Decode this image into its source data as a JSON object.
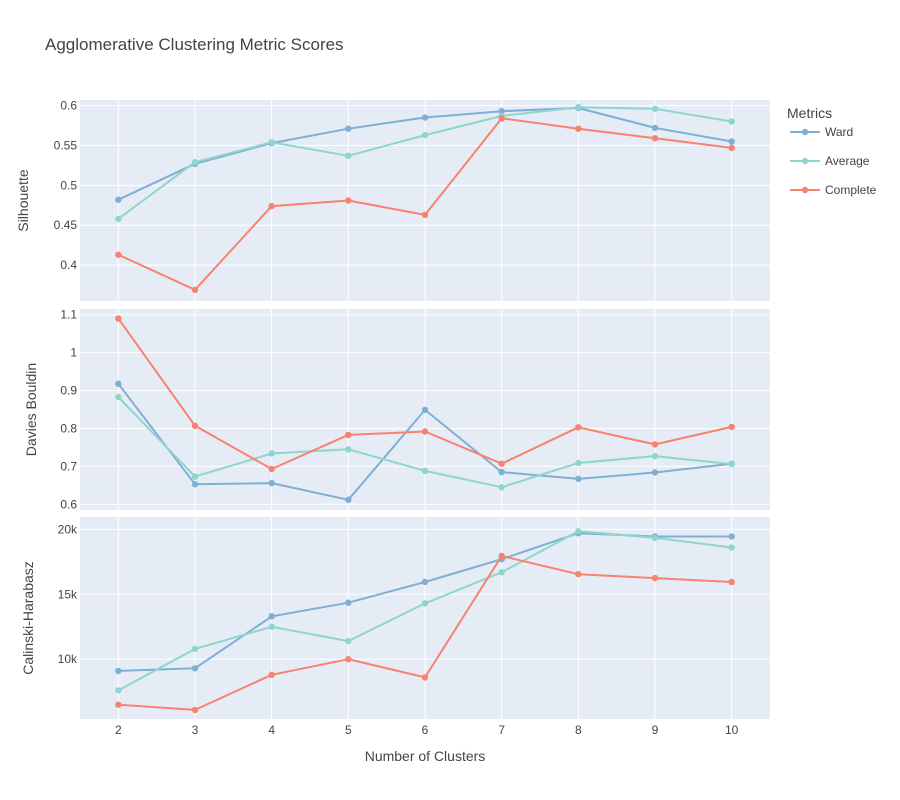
{
  "chart_data": {
    "type": "line",
    "title": "Agglomerative Clustering Metric Scores",
    "xlabel": "Number of Clusters",
    "x": [
      2,
      3,
      4,
      5,
      6,
      7,
      8,
      9,
      10
    ],
    "legend": {
      "title": "Metrics",
      "placement": "right",
      "entries": [
        "Ward",
        "Average",
        "Complete"
      ]
    },
    "colors": {
      "Ward": "#7fafd4",
      "Average": "#8ed6cb",
      "Complete": "#f7826f"
    },
    "subplots": [
      {
        "ylabel": "Silhouette",
        "ylim": [
          0.355,
          0.607
        ],
        "yticks": [
          0.4,
          0.45,
          0.5,
          0.55,
          0.6
        ],
        "ytick_labels": [
          "0.4",
          "0.45",
          "0.5",
          "0.55",
          "0.6"
        ],
        "series": [
          {
            "name": "Ward",
            "values": [
              0.482,
              0.527,
              0.553,
              0.571,
              0.585,
              0.593,
              0.597,
              0.572,
              0.555
            ]
          },
          {
            "name": "Average",
            "values": [
              0.458,
              0.529,
              0.554,
              0.537,
              0.563,
              0.587,
              0.598,
              0.596,
              0.58
            ]
          },
          {
            "name": "Complete",
            "values": [
              0.413,
              0.369,
              0.474,
              0.481,
              0.463,
              0.584,
              0.571,
              0.559,
              0.547
            ]
          }
        ]
      },
      {
        "ylabel": "Davies Bouldin",
        "ylim": [
          0.585,
          1.115
        ],
        "yticks": [
          0.6,
          0.7,
          0.8,
          0.9,
          1,
          1.1
        ],
        "ytick_labels": [
          "0.6",
          "0.7",
          "0.8",
          "0.9",
          "1",
          "1.1"
        ],
        "series": [
          {
            "name": "Ward",
            "values": [
              0.918,
              0.653,
              0.656,
              0.612,
              0.849,
              0.685,
              0.667,
              0.684,
              0.707
            ]
          },
          {
            "name": "Average",
            "values": [
              0.883,
              0.673,
              0.734,
              0.745,
              0.688,
              0.645,
              0.709,
              0.727,
              0.706
            ]
          },
          {
            "name": "Complete",
            "values": [
              1.09,
              0.807,
              0.693,
              0.783,
              0.792,
              0.707,
              0.803,
              0.758,
              0.804
            ]
          }
        ]
      },
      {
        "ylabel": "Calinski-Harabasz",
        "ylim": [
          5400,
          20950
        ],
        "yticks": [
          10000,
          15000,
          20000
        ],
        "ytick_labels": [
          "10k",
          "15k",
          "20k"
        ],
        "series": [
          {
            "name": "Ward",
            "values": [
              9100,
              9300,
              13300,
              14350,
              15950,
              17700,
              19700,
              19450,
              19450
            ]
          },
          {
            "name": "Average",
            "values": [
              7600,
              10800,
              12500,
              11400,
              14300,
              16700,
              19850,
              19350,
              18600
            ]
          },
          {
            "name": "Complete",
            "values": [
              6500,
              6100,
              8800,
              10000,
              8600,
              17950,
              16550,
              16250,
              15950
            ]
          }
        ]
      }
    ]
  }
}
